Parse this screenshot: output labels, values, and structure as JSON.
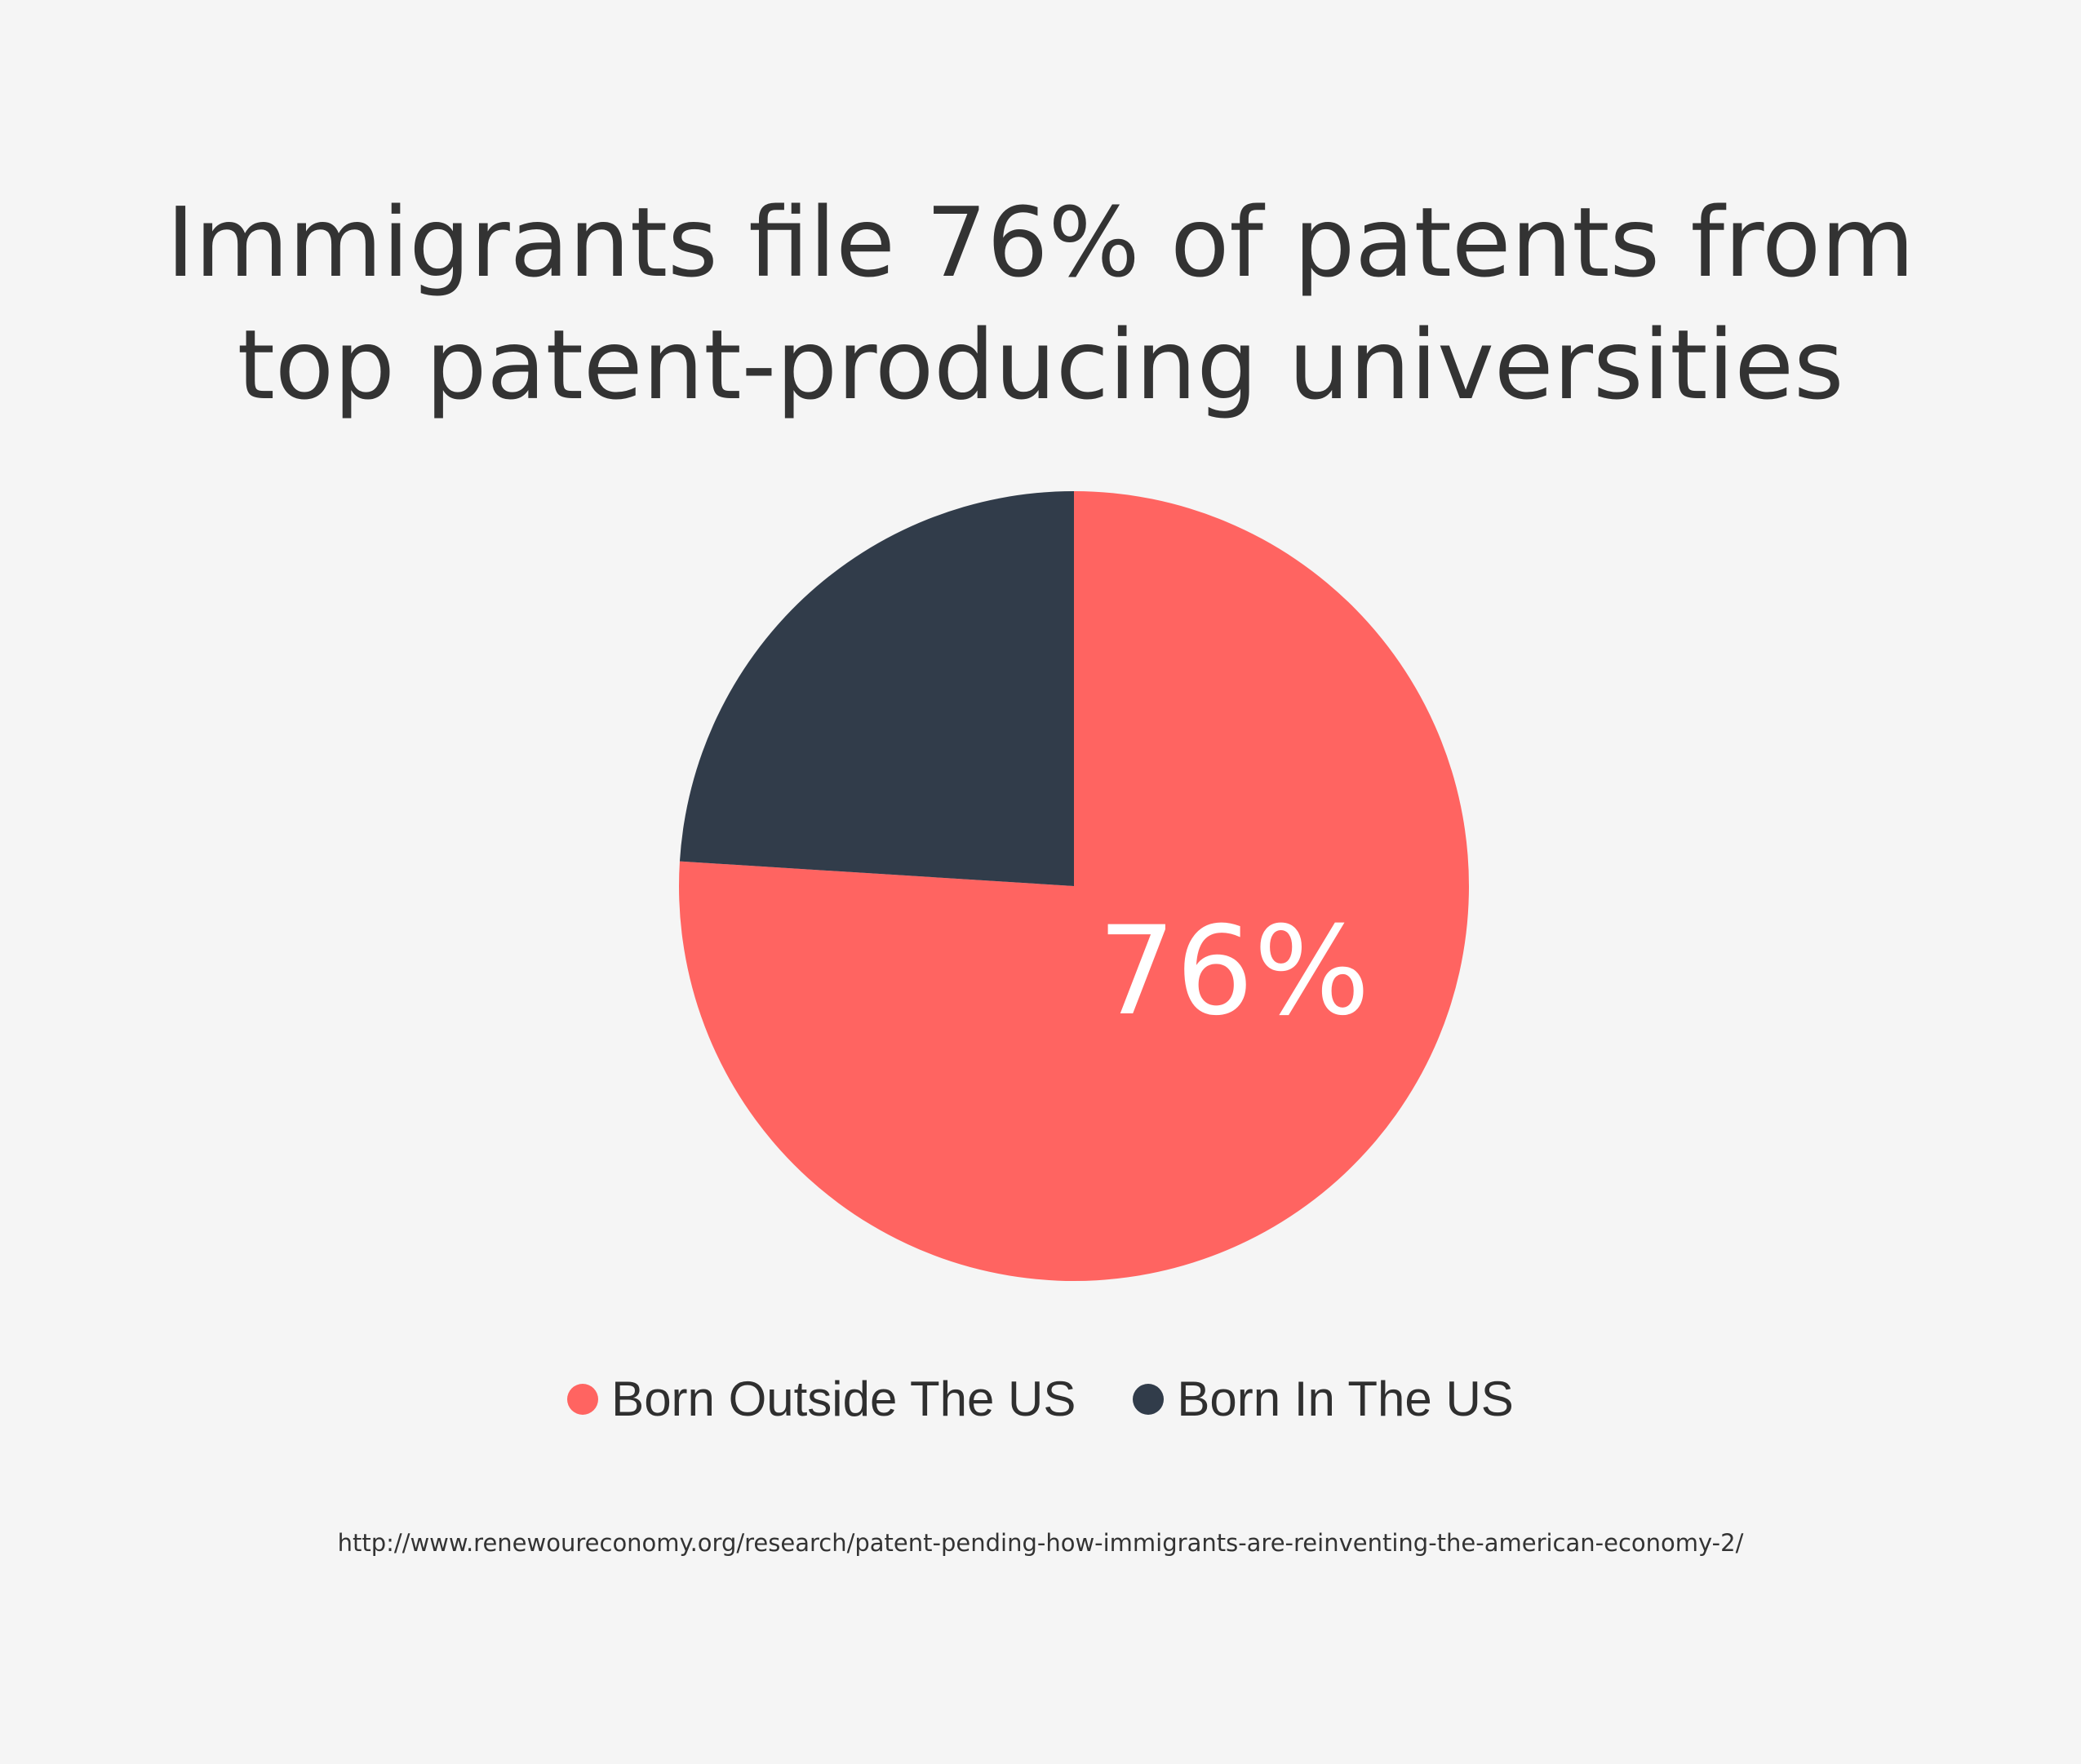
{
  "chart_data": {
    "type": "pie",
    "title_lines": [
      "Immigrants file 76% of patents from",
      "top patent-producing universities"
    ],
    "slices": [
      {
        "name": "Born Outside The US",
        "value": 76,
        "color": "#ff6461",
        "label": "76%"
      },
      {
        "name": "Born In The US",
        "value": 24,
        "color": "#313c4a"
      }
    ],
    "legend_position": "bottom-center",
    "label_color": "#ffffff"
  },
  "source": "http://www.renewoureconomy.org/research/patent-pending-how-immigrants-are-reinventing-the-american-economy-2/",
  "colors": {
    "background": "#f5f5f5",
    "text": "#333333"
  }
}
